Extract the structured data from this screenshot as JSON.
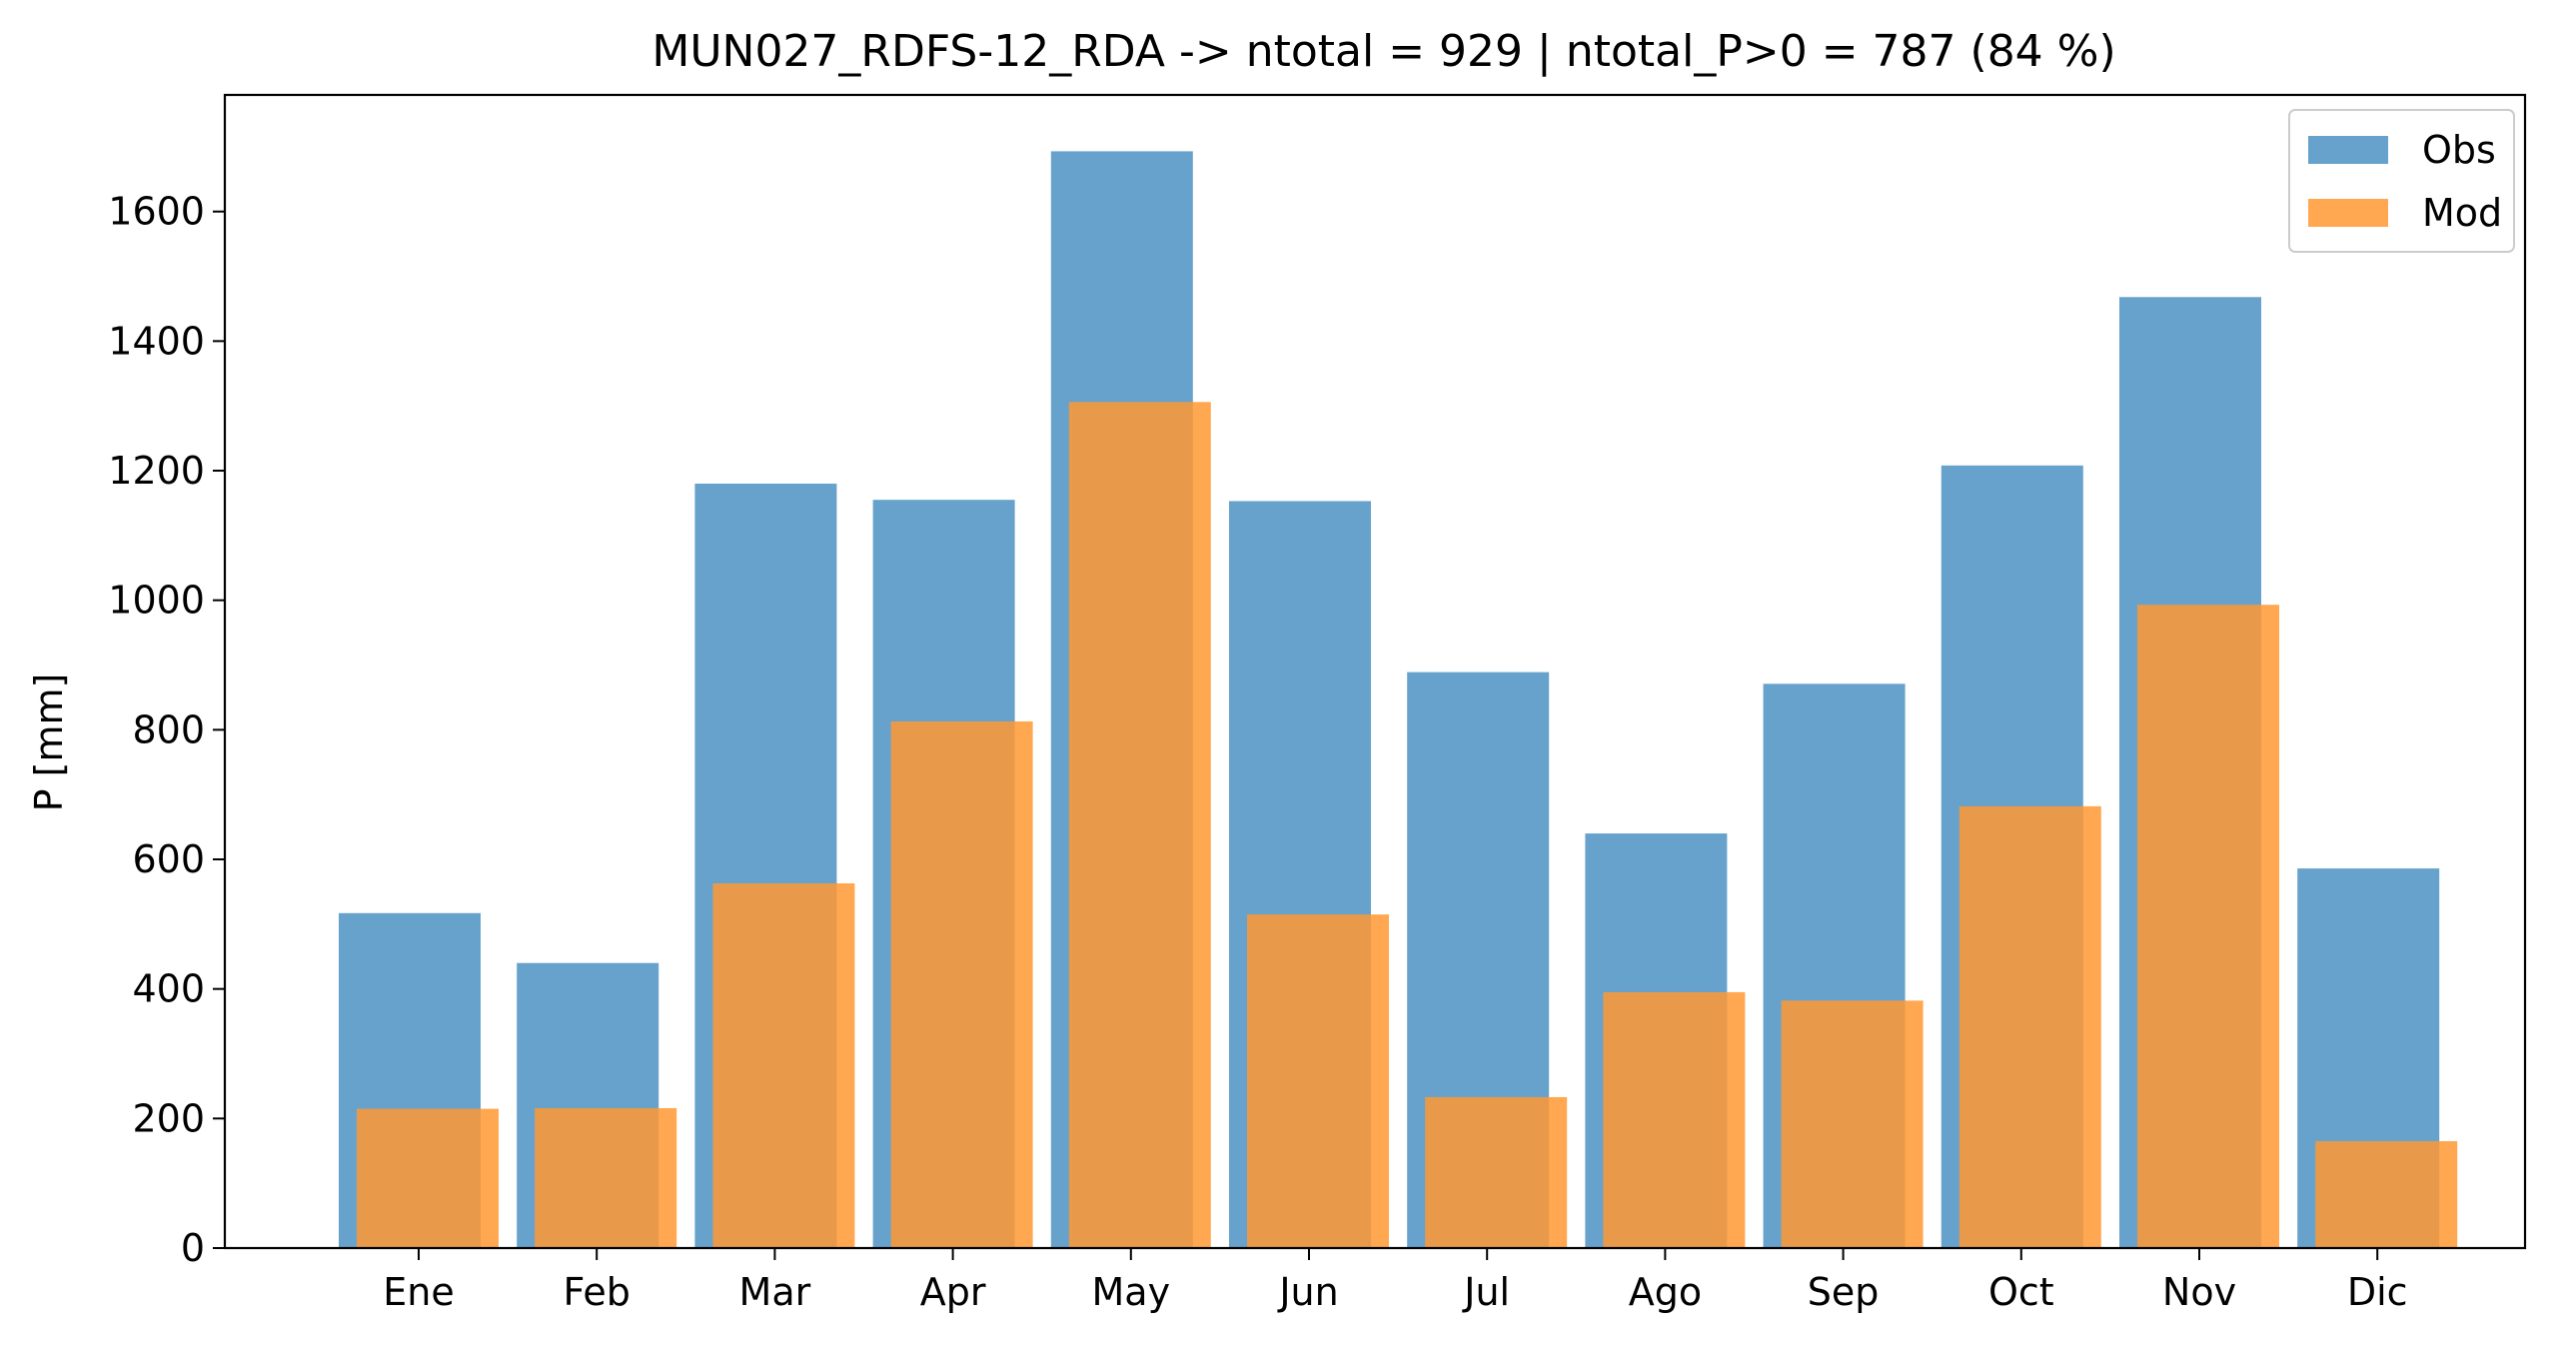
{
  "chart_data": {
    "type": "bar",
    "title": "MUN027_RDFS-12_RDA -> ntotal = 929 | ntotal_P>0 = 787 (84 %)",
    "xlabel": "",
    "ylabel": "P [mm]",
    "categories": [
      "Ene",
      "Feb",
      "Mar",
      "Apr",
      "May",
      "Jun",
      "Jul",
      "Ago",
      "Sep",
      "Oct",
      "Nov",
      "Dic"
    ],
    "series": [
      {
        "name": "Obs",
        "color": "#4c92c3",
        "values": [
          517,
          440,
          1180,
          1155,
          1693,
          1153,
          889,
          640,
          871,
          1208,
          1468,
          586
        ]
      },
      {
        "name": "Mod",
        "color": "#ff9933",
        "values": [
          215,
          216,
          563,
          813,
          1306,
          515,
          233,
          395,
          382,
          682,
          993,
          165
        ]
      }
    ],
    "ylim": [
      0,
      1780
    ],
    "yticks": [
      0,
      200,
      400,
      600,
      800,
      1000,
      1200,
      1400,
      1600
    ],
    "grid": false,
    "legend": "top-right"
  }
}
